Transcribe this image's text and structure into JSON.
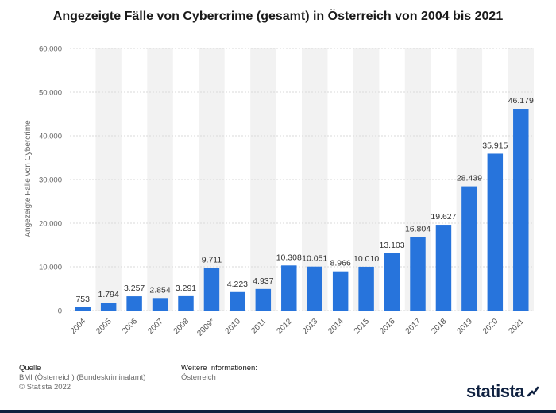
{
  "title": "Angezeigte Fälle von Cybercrime (gesamt) in Österreich von 2004 bis 2021",
  "footer": {
    "source_heading": "Quelle",
    "source_line1": "BMI (Österreich) (Bundeskriminalamt)",
    "source_line2": "© Statista 2022",
    "info_heading": "Weitere Informationen:",
    "info_line1": "Österreich"
  },
  "logo_text": "statista",
  "colors": {
    "bar": "#2774dc",
    "band": "#f2f2f2",
    "axis_text": "#666666",
    "label_text": "#333333",
    "brand": "#0f2140"
  },
  "chart_data": {
    "type": "bar",
    "title": "Angezeigte Fälle von Cybercrime (gesamt) in Österreich von 2004 bis 2021",
    "ylabel": "Angezeigte Fälle von Cybercrime",
    "xlabel": "",
    "ylim": [
      0,
      60000
    ],
    "yticks": [
      0,
      10000,
      20000,
      30000,
      40000,
      50000,
      60000
    ],
    "ytick_labels": [
      "0",
      "10.000",
      "20.000",
      "30.000",
      "40.000",
      "50.000",
      "60.000"
    ],
    "categories": [
      "2004",
      "2005",
      "2006",
      "2007",
      "2008",
      "2009*",
      "2010",
      "2011",
      "2012",
      "2013",
      "2014",
      "2015",
      "2016",
      "2017",
      "2018",
      "2019",
      "2020",
      "2021"
    ],
    "values": [
      753,
      1794,
      3257,
      2854,
      3291,
      9711,
      4223,
      4937,
      10308,
      10051,
      8966,
      10010,
      13103,
      16804,
      19627,
      28439,
      35915,
      46179
    ],
    "value_labels": [
      "753",
      "1.794",
      "3.257",
      "2.854",
      "3.291",
      "9.711",
      "4.223",
      "4.937",
      "10.308",
      "10.051",
      "8.966",
      "10.010",
      "13.103",
      "16.804",
      "19.627",
      "28.439",
      "35.915",
      "46.179"
    ],
    "grid": true
  }
}
